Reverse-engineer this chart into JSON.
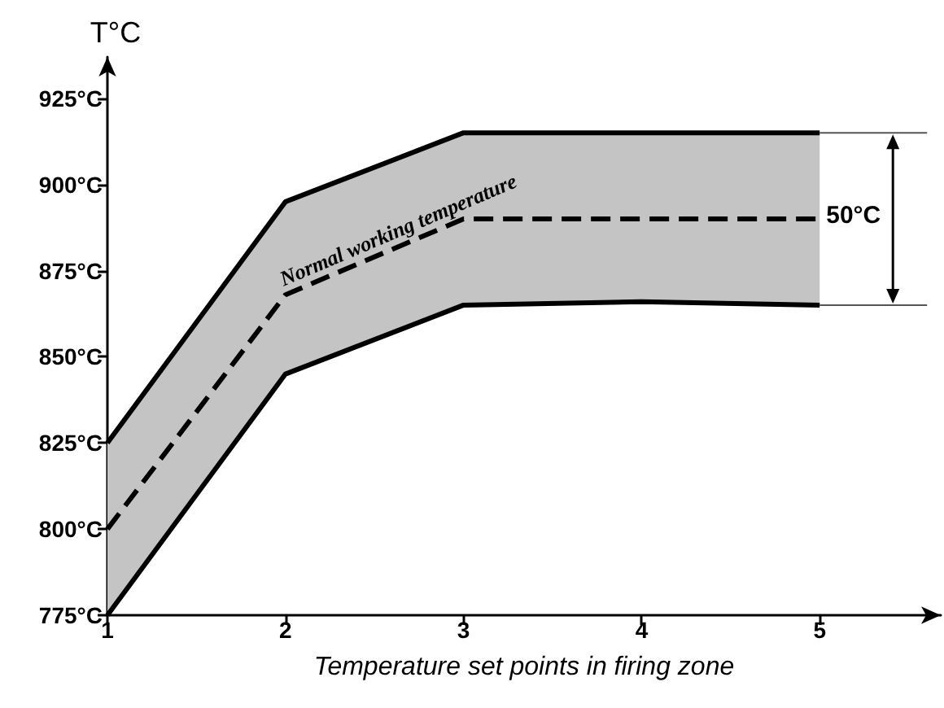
{
  "chart_data": {
    "type": "line",
    "ylabel": "T°C",
    "xlabel": "Temperature set points in firing zone",
    "x": [
      1,
      2,
      3,
      4,
      5
    ],
    "xlim": [
      1,
      5.68
    ],
    "xticks": [
      1,
      2,
      3,
      4,
      5
    ],
    "ylim": [
      775,
      937
    ],
    "yticks": [
      {
        "value": 775,
        "label": "775°C"
      },
      {
        "value": 800,
        "label": "800°C"
      },
      {
        "value": 825,
        "label": "825°C"
      },
      {
        "value": 850,
        "label": "850°C"
      },
      {
        "value": 875,
        "label": "875°C"
      },
      {
        "value": 900,
        "label": "900°C"
      },
      {
        "value": 925,
        "label": "925°C"
      }
    ],
    "grid": false,
    "marker": "none",
    "series": [
      {
        "color": "#000000",
        "line_style": "solid",
        "values": [
          825,
          895,
          915,
          915,
          915
        ]
      },
      {
        "color": "#000000",
        "line_style": "solid",
        "values": [
          775,
          845,
          865,
          866,
          865
        ]
      },
      {
        "color": "#000000",
        "line_style": "dashed",
        "values": [
          800,
          868,
          890,
          890,
          890
        ],
        "lower": [
          775,
          845,
          865,
          866,
          865
        ],
        "upper": [
          825,
          895,
          915,
          915,
          915
        ]
      }
    ],
    "annotations": [
      {
        "text": "Normal working temperature",
        "x": 2.6,
        "y": 883
      },
      "50°C"
    ]
  }
}
